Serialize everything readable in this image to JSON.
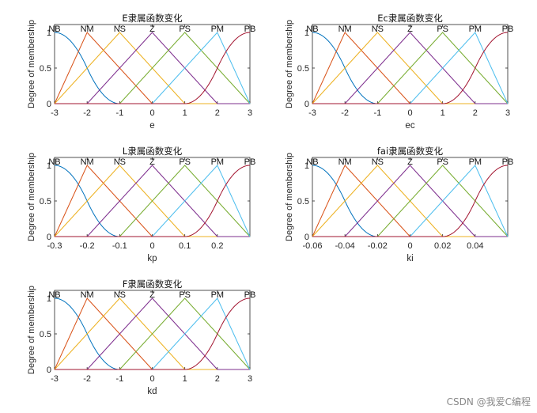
{
  "figure": {
    "background": "#ffffff",
    "mf_labels": [
      "NB",
      "NM",
      "NS",
      "Z",
      "PS",
      "PM",
      "PB"
    ],
    "mf_colors": [
      "#0072bd",
      "#d95319",
      "#edb120",
      "#7e2f8e",
      "#77ac30",
      "#4dbeee",
      "#a2142f"
    ],
    "axis_color": "#262626"
  },
  "chart_data": [
    {
      "type": "line",
      "title": "E隶属函数变化",
      "xlabel": "e",
      "ylabel": "Degree of membership",
      "xlim": [
        -3,
        3
      ],
      "ylim": [
        0,
        1
      ],
      "xticks": [
        -3,
        -2,
        -1,
        0,
        1,
        2,
        3
      ],
      "xtick_labels": [
        "-3",
        "-2",
        "-1",
        "0",
        "1",
        "2",
        "3"
      ],
      "yticks": [
        0,
        0.5,
        1
      ],
      "ytick_labels": [
        "0",
        "0.5",
        "1"
      ],
      "centers": [
        -3,
        -2,
        -1,
        0,
        1,
        2,
        3
      ],
      "series": [
        {
          "name": "NB",
          "shape": "zmf",
          "params": [
            -3,
            -1
          ]
        },
        {
          "name": "NM",
          "shape": "trimf",
          "params": [
            -3,
            -2,
            0
          ]
        },
        {
          "name": "NS",
          "shape": "trimf",
          "params": [
            -3,
            -1,
            1
          ]
        },
        {
          "name": "Z",
          "shape": "trimf",
          "params": [
            -2,
            0,
            2
          ]
        },
        {
          "name": "PS",
          "shape": "trimf",
          "params": [
            -1,
            1,
            3
          ]
        },
        {
          "name": "PM",
          "shape": "trimf",
          "params": [
            0,
            2,
            3
          ]
        },
        {
          "name": "PB",
          "shape": "smf",
          "params": [
            1,
            3
          ]
        }
      ]
    },
    {
      "type": "line",
      "title": "Ec隶属函数变化",
      "xlabel": "ec",
      "ylabel": "Degree of membership",
      "xlim": [
        -3,
        3
      ],
      "ylim": [
        0,
        1
      ],
      "xticks": [
        -3,
        -2,
        -1,
        0,
        1,
        2,
        3
      ],
      "xtick_labels": [
        "-3",
        "-2",
        "-1",
        "0",
        "1",
        "2",
        "3"
      ],
      "yticks": [
        0,
        0.5,
        1
      ],
      "ytick_labels": [
        "0",
        "0.5",
        "1"
      ],
      "centers": [
        -3,
        -2,
        -1,
        0,
        1,
        2,
        3
      ],
      "series": [
        {
          "name": "NB",
          "shape": "zmf",
          "params": [
            -3,
            -1
          ]
        },
        {
          "name": "NM",
          "shape": "trimf",
          "params": [
            -3,
            -2,
            0
          ]
        },
        {
          "name": "NS",
          "shape": "trimf",
          "params": [
            -3,
            -1,
            1
          ]
        },
        {
          "name": "Z",
          "shape": "trimf",
          "params": [
            -2,
            0,
            2
          ]
        },
        {
          "name": "PS",
          "shape": "trimf",
          "params": [
            -1,
            1,
            3
          ]
        },
        {
          "name": "PM",
          "shape": "trimf",
          "params": [
            0,
            2,
            3
          ]
        },
        {
          "name": "PB",
          "shape": "smf",
          "params": [
            1,
            3
          ]
        }
      ]
    },
    {
      "type": "line",
      "title": "L隶属函数变化",
      "xlabel": "kp",
      "ylabel": "Degree of membership",
      "xlim": [
        -0.3,
        0.3
      ],
      "ylim": [
        0,
        1
      ],
      "xticks": [
        -0.3,
        -0.2,
        -0.1,
        0,
        0.1,
        0.2
      ],
      "xtick_labels": [
        "-0.3",
        "-0.2",
        "-0.1",
        "0",
        "0.1",
        "0.2"
      ],
      "yticks": [
        0,
        0.5,
        1
      ],
      "ytick_labels": [
        "0",
        "0.5",
        "1"
      ],
      "centers": [
        -0.3,
        -0.2,
        -0.1,
        0,
        0.1,
        0.2,
        0.3
      ],
      "series": [
        {
          "name": "NB",
          "shape": "zmf",
          "params": [
            -0.3,
            -0.1
          ]
        },
        {
          "name": "NM",
          "shape": "trimf",
          "params": [
            -0.3,
            -0.2,
            0
          ]
        },
        {
          "name": "NS",
          "shape": "trimf",
          "params": [
            -0.3,
            -0.1,
            0.1
          ]
        },
        {
          "name": "Z",
          "shape": "trimf",
          "params": [
            -0.2,
            0,
            0.2
          ]
        },
        {
          "name": "PS",
          "shape": "trimf",
          "params": [
            -0.1,
            0.1,
            0.3
          ]
        },
        {
          "name": "PM",
          "shape": "trimf",
          "params": [
            0,
            0.2,
            0.3
          ]
        },
        {
          "name": "PB",
          "shape": "smf",
          "params": [
            0.1,
            0.3
          ]
        }
      ]
    },
    {
      "type": "line",
      "title": "fai隶属函数变化",
      "xlabel": "ki",
      "ylabel": "Degree of membership",
      "xlim": [
        -0.06,
        0.06
      ],
      "ylim": [
        0,
        1
      ],
      "xticks": [
        -0.06,
        -0.04,
        -0.02,
        0,
        0.02,
        0.04
      ],
      "xtick_labels": [
        "-0.06",
        "-0.04",
        "-0.02",
        "0",
        "0.02",
        "0.04"
      ],
      "yticks": [
        0,
        0.5,
        1
      ],
      "ytick_labels": [
        "0",
        "0.5",
        "1"
      ],
      "centers": [
        -0.06,
        -0.04,
        -0.02,
        0,
        0.02,
        0.04,
        0.06
      ],
      "series": [
        {
          "name": "NB",
          "shape": "zmf",
          "params": [
            -0.06,
            -0.02
          ]
        },
        {
          "name": "NM",
          "shape": "trimf",
          "params": [
            -0.06,
            -0.04,
            0
          ]
        },
        {
          "name": "NS",
          "shape": "trimf",
          "params": [
            -0.06,
            -0.02,
            0.02
          ]
        },
        {
          "name": "Z",
          "shape": "trimf",
          "params": [
            -0.04,
            0,
            0.04
          ]
        },
        {
          "name": "PS",
          "shape": "trimf",
          "params": [
            -0.02,
            0.02,
            0.06
          ]
        },
        {
          "name": "PM",
          "shape": "trimf",
          "params": [
            0,
            0.04,
            0.06
          ]
        },
        {
          "name": "PB",
          "shape": "smf",
          "params": [
            0.02,
            0.06
          ]
        }
      ]
    },
    {
      "type": "line",
      "title": "F隶属函数变化",
      "xlabel": "kd",
      "ylabel": "Degree of membership",
      "xlim": [
        -3,
        3
      ],
      "ylim": [
        0,
        1
      ],
      "xticks": [
        -3,
        -2,
        -1,
        0,
        1,
        2,
        3
      ],
      "xtick_labels": [
        "-3",
        "-2",
        "-1",
        "0",
        "1",
        "2",
        "3"
      ],
      "yticks": [
        0,
        0.5,
        1
      ],
      "ytick_labels": [
        "0",
        "0.5",
        "1"
      ],
      "centers": [
        -3,
        -2,
        -1,
        0,
        1,
        2,
        3
      ],
      "series": [
        {
          "name": "NB",
          "shape": "zmf",
          "params": [
            -3,
            -1
          ]
        },
        {
          "name": "NM",
          "shape": "trimf",
          "params": [
            -3,
            -2,
            0
          ]
        },
        {
          "name": "NS",
          "shape": "trimf",
          "params": [
            -3,
            -1,
            1
          ]
        },
        {
          "name": "Z",
          "shape": "trimf",
          "params": [
            -2,
            0,
            2
          ]
        },
        {
          "name": "PS",
          "shape": "trimf",
          "params": [
            -1,
            1,
            3
          ]
        },
        {
          "name": "PM",
          "shape": "trimf",
          "params": [
            0,
            2,
            3
          ]
        },
        {
          "name": "PB",
          "shape": "smf",
          "params": [
            1,
            3
          ]
        }
      ]
    }
  ],
  "watermark": {
    "text": "CSDN @我爱C编程"
  }
}
